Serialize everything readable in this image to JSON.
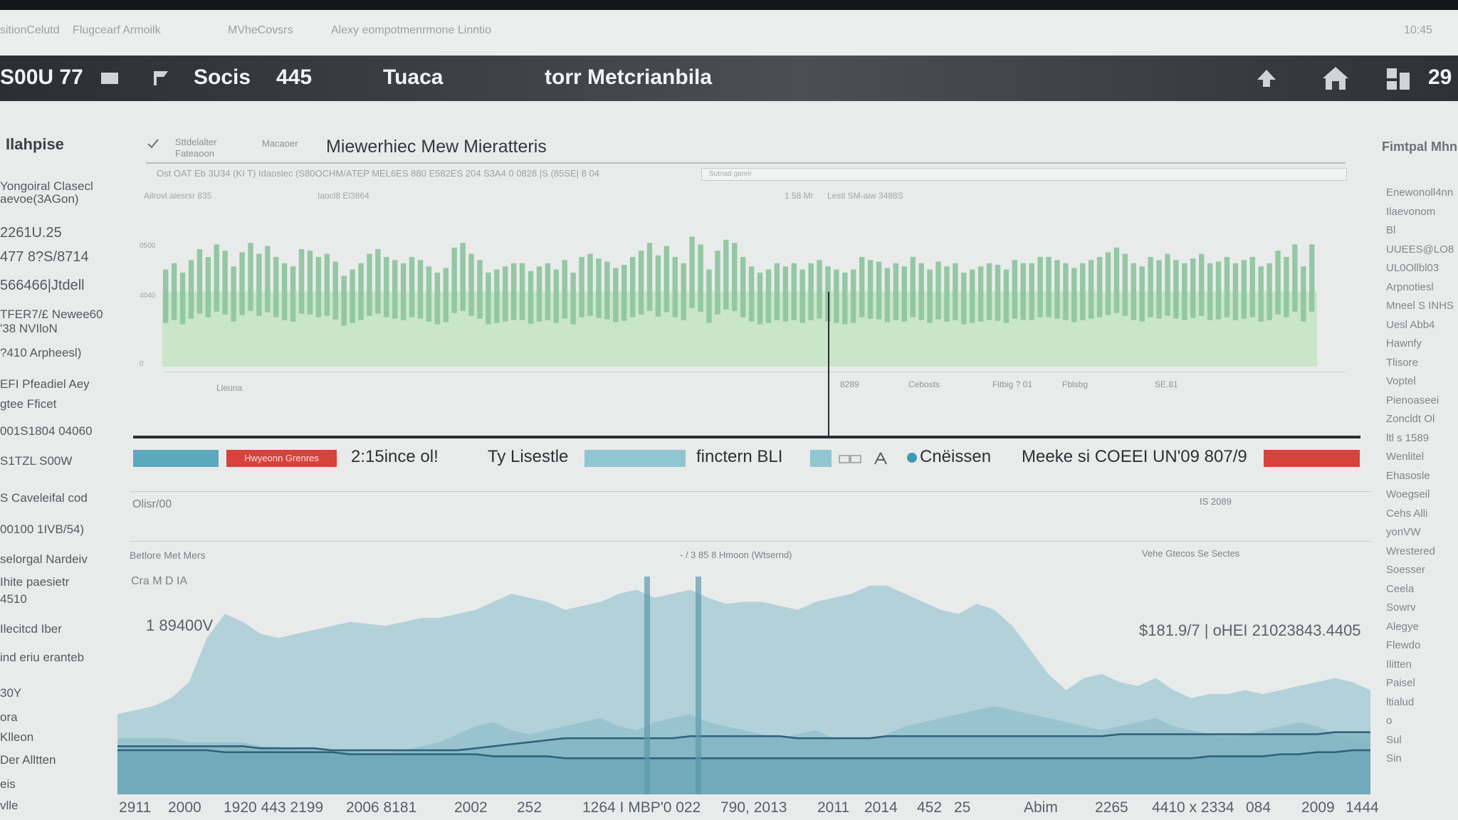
{
  "browser": {
    "items": [
      "sitionCelutd",
      "Flugcearf Armoilk",
      "MVheCovsrs",
      "Alexy eompotmenrmone Linntio"
    ],
    "clock": "10:45"
  },
  "appbar": {
    "brand": "S00U 77",
    "tab1": "Socis",
    "count": "445",
    "tab2": "Tuaca",
    "center_title": "torr Metcrianbila",
    "right_number": "29"
  },
  "sidebar_left": {
    "heading": "Ilahpise",
    "items": [
      "Yongoiral Clasecl",
      "aevoe(3AGon)",
      "2261U.25",
      "477  8?S/8714",
      "566466|Jtdell",
      "TFER7/£ Newee60",
      "'38 NVIloN",
      "?410 Arpheesl)",
      "EFI Pfeadiel Aey",
      "gtee Fficet",
      "001S1804 04060",
      "S1TZL S00W",
      "S Caveleifal cod",
      "00100 1IVB/54)",
      "selorgal Nardeiv",
      "Ihite paesietr",
      "4510",
      "Ilecitcd Iber",
      "ind eriu eranteb",
      "30Y",
      "ora",
      "Klleon",
      "Der Alltten",
      "eis",
      "vlle"
    ]
  },
  "sidebar_right": {
    "heading": "Fimtpal Mhn",
    "items": [
      "Enewonoll4nn",
      "Ilaevonom",
      "Bl",
      "UUEES@LO8",
      "UL0Ollbl03",
      "Arpnotiesl",
      "Mneel S INHS",
      "Uesl Abb4",
      "Hawnfy",
      "Tlisore",
      "Voptel",
      "Pienoaseei",
      "Zoncldt Ol",
      "ltl s 1589",
      "Wenlitel",
      "Ehasosle",
      "Woegseil",
      "Cehs Alli",
      "yonVW",
      "Wrestered",
      "Soesser",
      "Ceela",
      "Sowrv",
      "Alegye",
      "Flewdo",
      "Ilitten",
      "Paisel",
      "ltialud",
      "o",
      "Sul",
      "Sin"
    ]
  },
  "panel": {
    "crumb1": "Sttdelalter",
    "crumb1b": "Fateaoon",
    "crumb2": "Macaoer",
    "title": "Miewerhiec Mew Mieratteris",
    "filters": "Ost OAT Eb   3U34 (KI T)   Idaoslec   (S80OCHM/ATEP MEL6ES 880   E582ES 204 S3A4   0 0828 |S (85SE| 8 04",
    "filter_box_text": "Sutnad gareir",
    "chart_label_left": "Ailrovl alesrsr 835",
    "chart_label_mid": "Iaocl8 El3864",
    "chart_label_r1": "1 58 Mr",
    "chart_label_r2": "Lestl SM-aiw 3488S",
    "bottom_labels": [
      "Lleuna",
      "8289",
      "Cebosts",
      "Fitbig  ? 01",
      "Fblsbg",
      "SE.81"
    ]
  },
  "legend": {
    "red_chip": "Hwyeonn Grenres",
    "t1": "2:15ince ol!",
    "t2": "Ty Lisestle",
    "t3": "finctern BLI",
    "t4": "Cnëissen",
    "t5": "Meeke si COEEI UN'09 807/9"
  },
  "lower": {
    "row_label": "Olisr/00",
    "row_label_right": "IS 2089",
    "chart_title_left": "Betlore Met Mers",
    "chart_title_mid": "- / 3 85 8 Hmoon  (Wtsernd)",
    "chart_title_right": "Vehe Gtecos Se Sectes",
    "sub": "Cra M D IA",
    "peak_label": "1 89400V",
    "right_label": "$181.9/7  |  oHEI 21023843.4405",
    "x_labels": [
      "2911",
      "2000",
      "1920 443 2199",
      "2006 8181",
      "2002",
      "252",
      "1264 I MBP'0 022",
      "790, 2013",
      "2011",
      "2014",
      "452",
      "25",
      "Abim",
      "2265",
      "4410 x 2334",
      "084",
      "2009",
      "1444"
    ]
  },
  "colors": {
    "bar_green": "#8fc5a0",
    "area_green": "#c9e6c9",
    "area_blue": "#7fb3c2",
    "teal_chip": "#5aa9bd",
    "red_chip": "#d8413c",
    "dark": "#2a2e31"
  },
  "chart_data": [
    {
      "type": "bar",
      "title": "",
      "y_ticks": [
        "0500",
        "4040",
        "0"
      ],
      "series": [
        {
          "values": [
            62,
            66,
            60,
            68,
            75,
            70,
            78,
            74,
            64,
            73,
            79,
            72,
            77,
            70,
            66,
            64,
            75,
            74,
            70,
            72,
            67,
            58,
            62,
            66,
            72,
            75,
            70,
            68,
            66,
            70,
            68,
            64,
            60,
            63,
            76,
            79,
            72,
            68,
            60,
            62,
            64,
            66,
            66,
            61,
            64,
            66,
            62,
            68,
            60,
            70,
            72,
            69,
            67,
            63,
            65,
            70,
            74,
            79,
            71,
            77,
            70,
            66,
            83,
            78,
            62,
            74,
            81,
            79,
            70,
            64,
            60,
            62,
            66,
            64,
            66,
            62,
            66,
            68,
            64,
            62,
            60,
            62,
            70,
            68,
            67,
            63,
            66,
            64,
            70,
            66,
            62,
            67,
            64,
            66,
            60,
            62,
            64,
            66,
            65,
            62,
            68,
            66,
            66,
            70,
            70,
            68,
            66,
            63,
            66,
            68,
            70,
            73,
            76,
            72,
            66,
            64,
            70,
            68,
            72,
            68,
            66,
            69,
            72,
            66,
            67,
            70,
            66,
            68,
            70,
            64,
            66,
            74,
            70,
            78,
            64,
            78
          ]
        }
      ],
      "background_level": 0.48
    },
    {
      "type": "area",
      "title": "",
      "series": [
        {
          "values": [
            40,
            42,
            44,
            48,
            56,
            78,
            90,
            86,
            80,
            78,
            80,
            82,
            84,
            86,
            85,
            84,
            86,
            88,
            88,
            90,
            92,
            96,
            100,
            98,
            96,
            92,
            94,
            96,
            100,
            102,
            98,
            100,
            102,
            98,
            95,
            96,
            96,
            94,
            92,
            96,
            98,
            100,
            104,
            104,
            100,
            96,
            92,
            90,
            95,
            92,
            84,
            72,
            60,
            52,
            58,
            60,
            56,
            54,
            58,
            52,
            48,
            50,
            50,
            52,
            50,
            52,
            54,
            56,
            58,
            56,
            52
          ]
        },
        {
          "values": [
            28,
            28,
            28,
            28,
            26,
            26,
            26,
            26,
            24,
            24,
            22,
            22,
            22,
            22,
            20,
            20,
            22,
            24,
            26,
            30,
            34,
            36,
            32,
            30,
            32,
            34,
            36,
            38,
            34,
            32,
            36,
            38,
            40,
            36,
            34,
            32,
            30,
            28,
            30,
            32,
            28,
            26,
            28,
            30,
            34,
            36,
            38,
            40,
            42,
            44,
            42,
            40,
            38,
            36,
            34,
            32,
            34,
            36,
            38,
            34,
            32,
            30,
            28,
            30,
            32,
            34,
            36,
            34,
            30,
            28,
            26
          ]
        },
        {
          "values": [
            24,
            24,
            24,
            24,
            24,
            24,
            24,
            24,
            23,
            23,
            23,
            23,
            22,
            22,
            22,
            22,
            22,
            22,
            22,
            22,
            23,
            24,
            25,
            26,
            27,
            28,
            28,
            28,
            28,
            28,
            28,
            28,
            29,
            29,
            29,
            29,
            29,
            29,
            28,
            28,
            28,
            28,
            28,
            29,
            29,
            29,
            29,
            29,
            29,
            29,
            29,
            29,
            29,
            29,
            29,
            29,
            30,
            30,
            30,
            30,
            30,
            30,
            30,
            30,
            30,
            30,
            30,
            30,
            31,
            31,
            31
          ]
        },
        {
          "values": [
            22,
            22,
            22,
            22,
            22,
            22,
            21,
            21,
            21,
            21,
            21,
            21,
            21,
            20,
            20,
            20,
            20,
            20,
            20,
            20,
            20,
            19,
            19,
            19,
            19,
            18,
            18,
            18,
            18,
            18,
            18,
            18,
            18,
            18,
            18,
            18,
            18,
            18,
            18,
            18,
            18,
            18,
            18,
            18,
            18,
            18,
            18,
            18,
            18,
            18,
            18,
            18,
            18,
            18,
            18,
            18,
            18,
            18,
            18,
            18,
            18,
            19,
            19,
            19,
            19,
            20,
            20,
            21,
            21,
            22,
            22
          ]
        }
      ]
    }
  ]
}
